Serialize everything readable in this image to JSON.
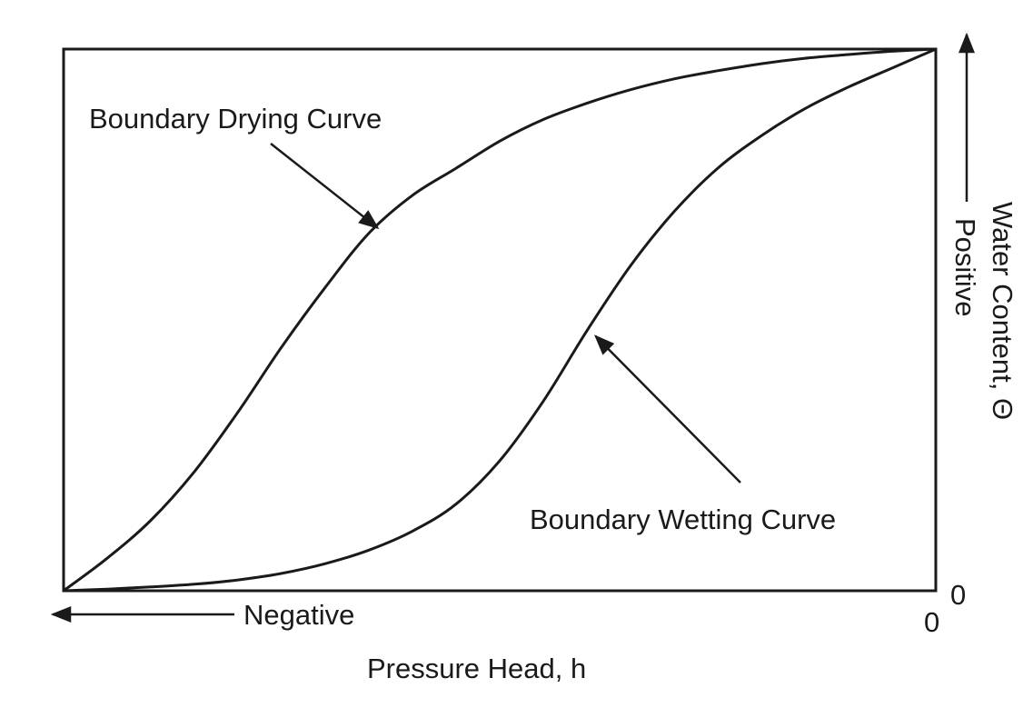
{
  "chart_data": {
    "type": "line",
    "title": "",
    "xlabel": "Pressure Head, h",
    "ylabel": "Water Content, Θ",
    "x_direction_label": "Negative",
    "y_direction_label": "Positive",
    "x_origin_label": "0",
    "y_origin_label": "0",
    "xlim": [
      -1,
      0
    ],
    "ylim": [
      0,
      1
    ],
    "grid": false,
    "legend": "none",
    "line_color": "#1a1a1a",
    "series": [
      {
        "name": "Boundary Drying Curve",
        "x": [
          -1.0,
          -0.95,
          -0.9,
          -0.85,
          -0.8,
          -0.75,
          -0.7,
          -0.65,
          -0.6,
          -0.55,
          -0.5,
          -0.45,
          -0.4,
          -0.35,
          -0.3,
          -0.25,
          -0.2,
          -0.15,
          -0.1,
          -0.05,
          0.0
        ],
        "y": [
          0.0,
          0.06,
          0.13,
          0.22,
          0.33,
          0.45,
          0.56,
          0.66,
          0.73,
          0.78,
          0.83,
          0.87,
          0.9,
          0.925,
          0.945,
          0.96,
          0.973,
          0.983,
          0.99,
          0.996,
          1.0
        ]
      },
      {
        "name": "Boundary Wetting Curve",
        "x": [
          -1.0,
          -0.95,
          -0.9,
          -0.85,
          -0.8,
          -0.75,
          -0.7,
          -0.65,
          -0.6,
          -0.55,
          -0.5,
          -0.45,
          -0.4,
          -0.35,
          -0.3,
          -0.25,
          -0.2,
          -0.15,
          -0.1,
          -0.05,
          0.0
        ],
        "y": [
          0.0,
          0.003,
          0.007,
          0.012,
          0.02,
          0.032,
          0.05,
          0.075,
          0.11,
          0.16,
          0.24,
          0.35,
          0.48,
          0.6,
          0.7,
          0.78,
          0.84,
          0.89,
          0.93,
          0.965,
          1.0
        ]
      }
    ],
    "annotations": [
      {
        "text": "Boundary Drying Curve",
        "series": "Boundary Drying Curve",
        "points_to_x": -0.64,
        "points_to_y": 0.67
      },
      {
        "text": "Boundary Wetting Curve",
        "series": "Boundary Wetting Curve",
        "points_to_x": -0.39,
        "points_to_y": 0.47
      }
    ]
  }
}
